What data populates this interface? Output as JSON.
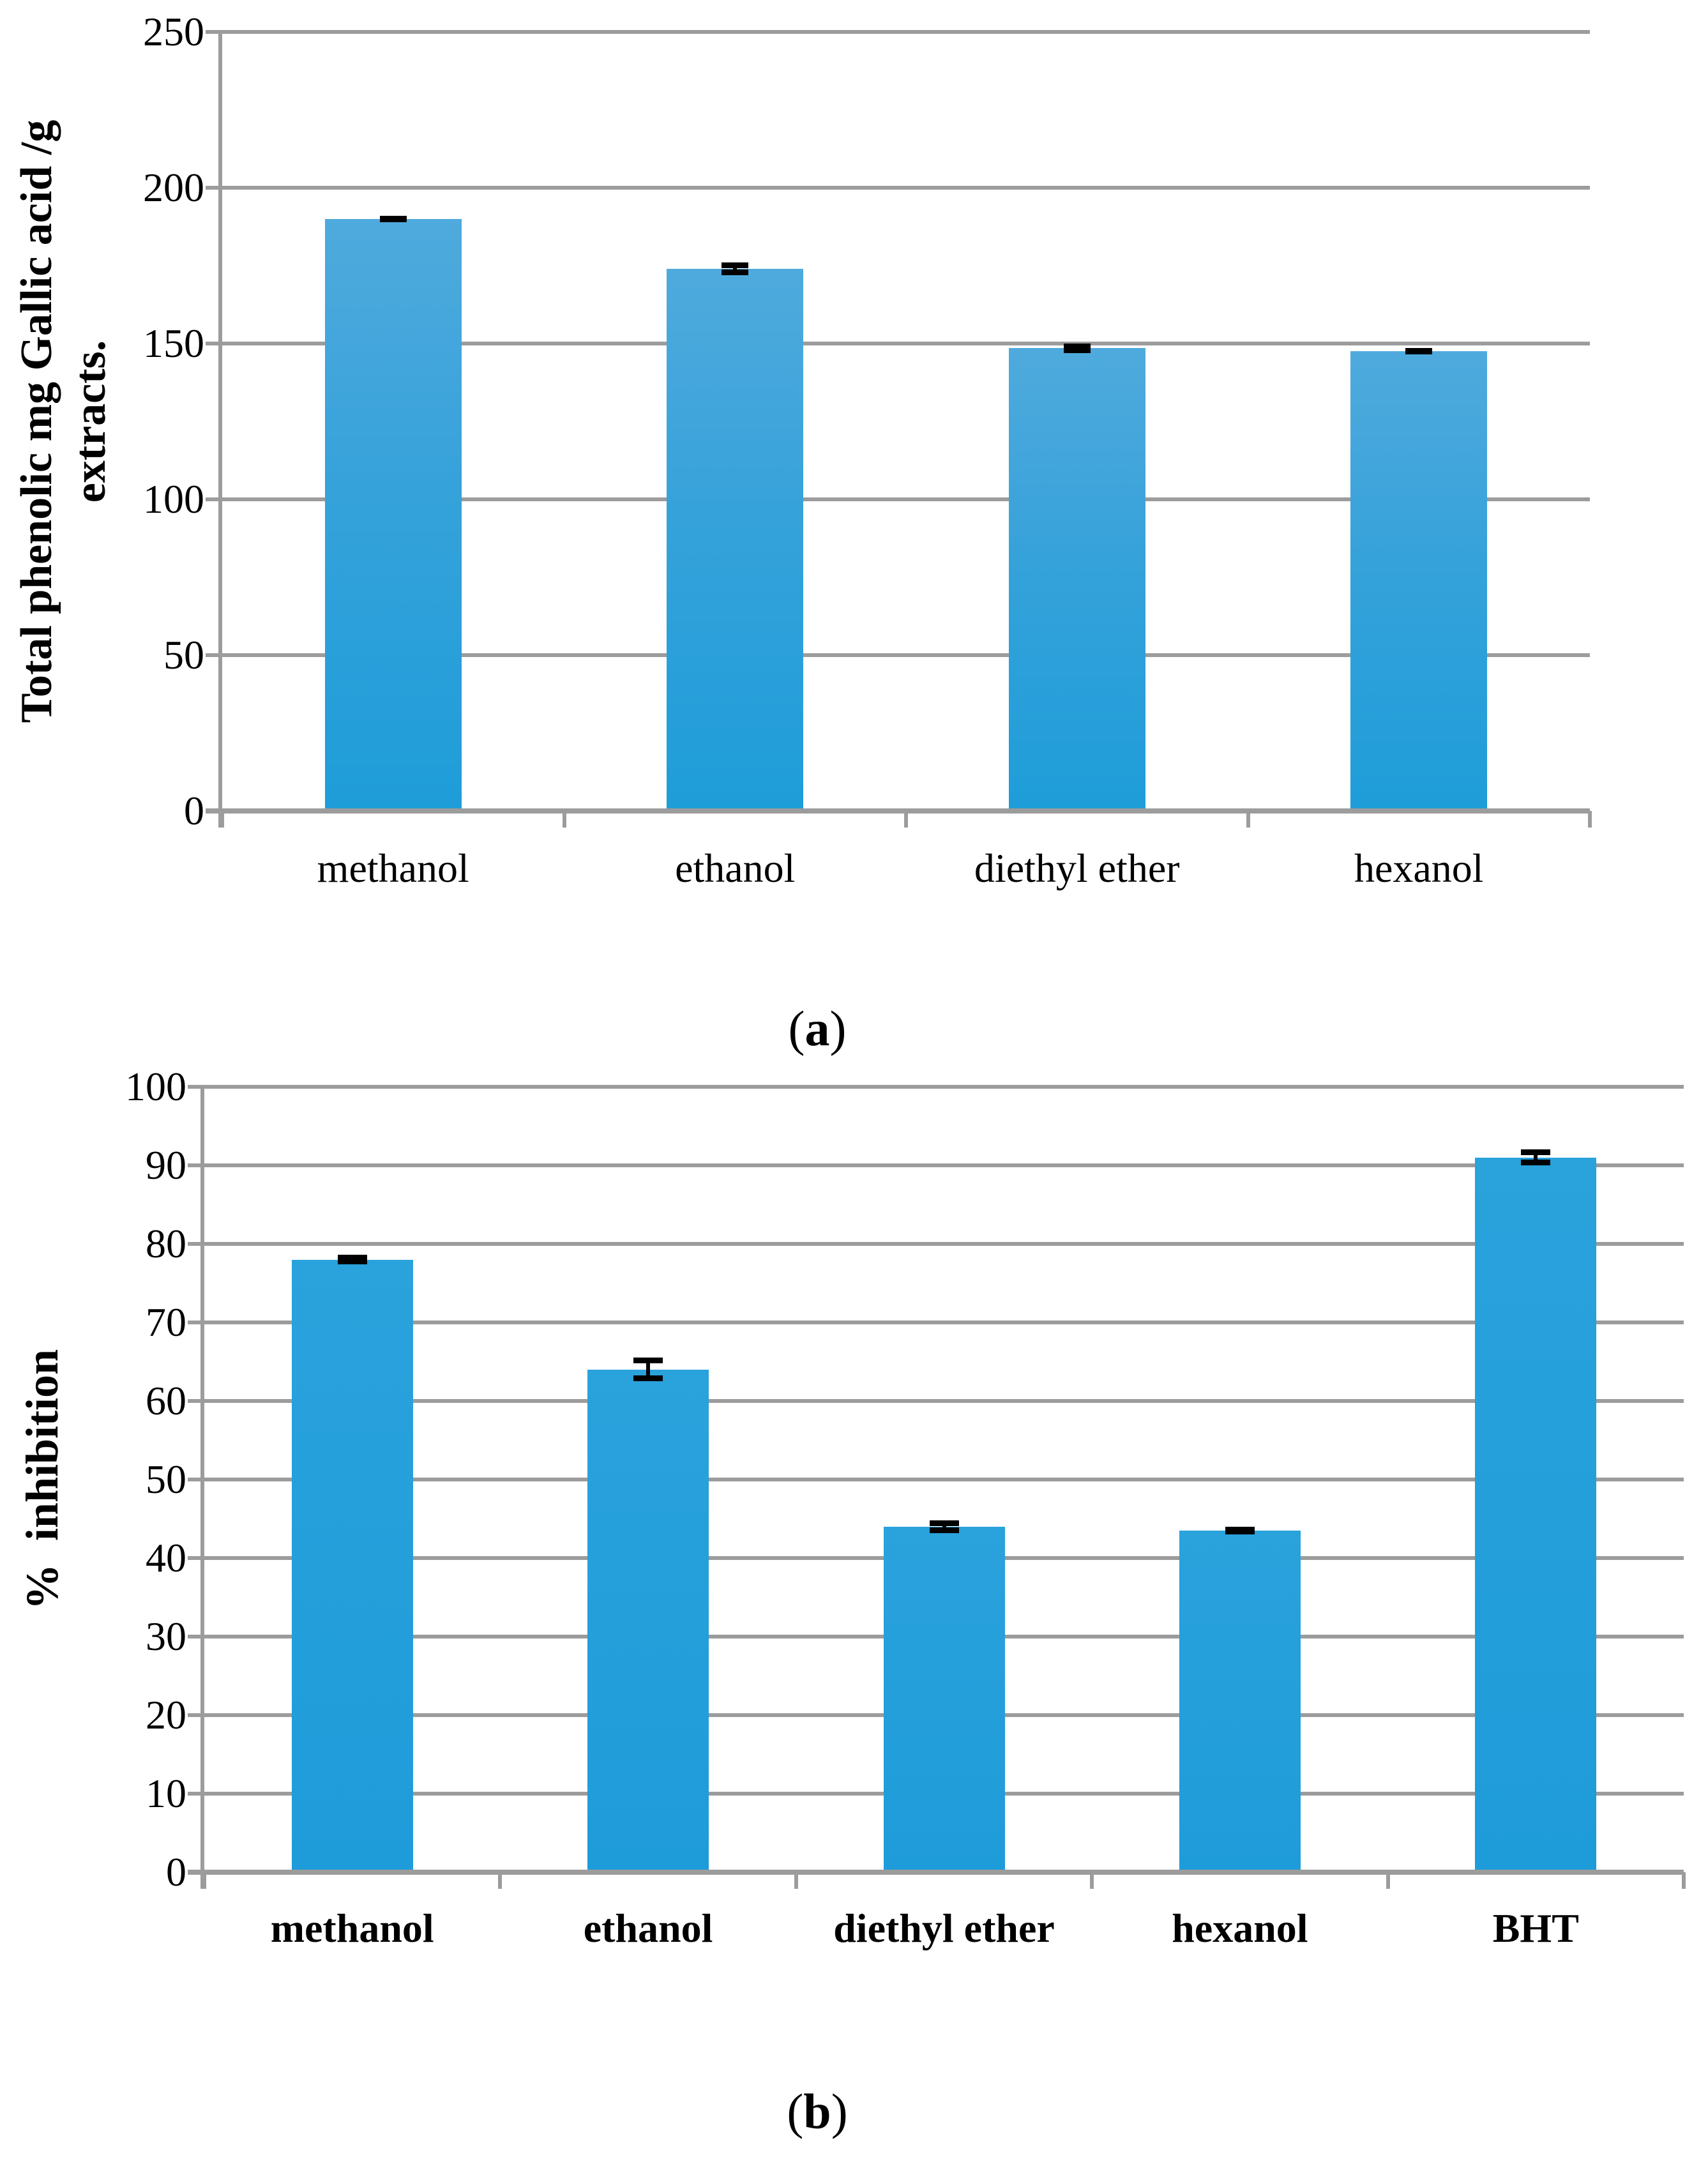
{
  "styles": {
    "grid_color": "#9C9C9C",
    "error_bar_color": "#000000",
    "bar_gradient_top_chart_a": "#4FAADD",
    "bar_gradient_bottom_chart_a": "#1E9DD9",
    "bar_color_top_chart_b": "#2AA2DC",
    "bar_color_bottom_chart_b": "#1E9CD9",
    "text_color": "#000000"
  },
  "captions": {
    "a": {
      "prefix": "(",
      "letter": "a",
      "suffix": ")"
    },
    "b": {
      "prefix": "(",
      "letter": "b",
      "suffix": ")"
    }
  },
  "chart_data": [
    {
      "id": "a",
      "type": "bar",
      "title": "",
      "xlabel": "",
      "ylabel": "Total phenolic mg Gallic acid /g extracts.",
      "ylabel_lines": [
        "Total phenolic mg Gallic acid /g",
        "extracts."
      ],
      "categories": [
        "methanol",
        "ethanol",
        "diethyl ether",
        "hexanol"
      ],
      "values": [
        190,
        174,
        148.5,
        147.5
      ],
      "errors": [
        1,
        2,
        1.5,
        1
      ],
      "ylim": [
        0,
        250
      ],
      "ytick_step": 50,
      "grid": true,
      "legend": null,
      "bold_categories": false
    },
    {
      "id": "b",
      "type": "bar",
      "title": "",
      "xlabel": "",
      "ylabel": "%  inhibition",
      "ylabel_lines": [
        "%  inhibition"
      ],
      "categories": [
        "methanol",
        "ethanol",
        "diethyl ether",
        "hexanol",
        "BHT"
      ],
      "values": [
        78,
        64,
        44,
        43.5,
        91
      ],
      "errors": [
        0.6,
        1.5,
        0.8,
        0.5,
        1
      ],
      "ylim": [
        0,
        100
      ],
      "ytick_step": 10,
      "grid": true,
      "legend": null,
      "bold_categories": true
    }
  ]
}
